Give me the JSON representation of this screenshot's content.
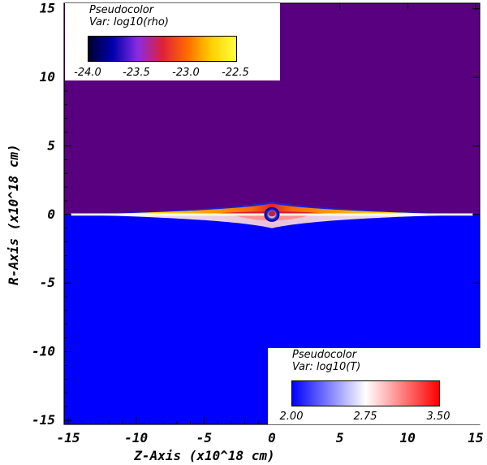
{
  "colors": {
    "background_upper": "#580080",
    "background_lower": "#0000ff",
    "density_cmap": [
      "#000030",
      "#0000b0",
      "#8a2be2",
      "#e0203a",
      "#ff6a00",
      "#ffd000",
      "#ffff40"
    ],
    "temperature_cmap": [
      "#0000ff",
      "#ffffff",
      "#ff0000"
    ]
  },
  "chart_data": {
    "type": "heatmap",
    "title": "",
    "xlabel": "Z-Axis (x10^18 cm)",
    "ylabel": "R-Axis (x10^18 cm)",
    "xlim": [
      -15.3,
      15.3
    ],
    "ylim": [
      -15.3,
      15.4
    ],
    "x_ticks": [
      -15,
      -10,
      -5,
      0,
      5,
      10,
      15
    ],
    "x_tick_labels": [
      "-15",
      "-10",
      "-5",
      "0",
      "5",
      "10",
      "15"
    ],
    "y_ticks": [
      15,
      10,
      5,
      0,
      -5,
      -10,
      -15
    ],
    "y_tick_labels": [
      "15",
      "10",
      "5",
      "0",
      "-5",
      "-10",
      "-15"
    ],
    "grid": false,
    "upper_half": {
      "plot_label": "Pseudocolor",
      "variable": "Var: log10(rho)",
      "range": [
        -24.0,
        -22.5
      ],
      "colorbar_ticks": [
        "-24.0",
        "-23.5",
        "-23.0",
        "-22.5"
      ],
      "legend_position": "top-left"
    },
    "lower_half": {
      "plot_label": "Pseudocolor",
      "variable": "Var: log10(T)",
      "range": [
        2.0,
        3.5
      ],
      "colorbar_ticks": [
        "2.00",
        "2.75",
        "3.50"
      ],
      "legend_position": "bottom-right"
    }
  }
}
